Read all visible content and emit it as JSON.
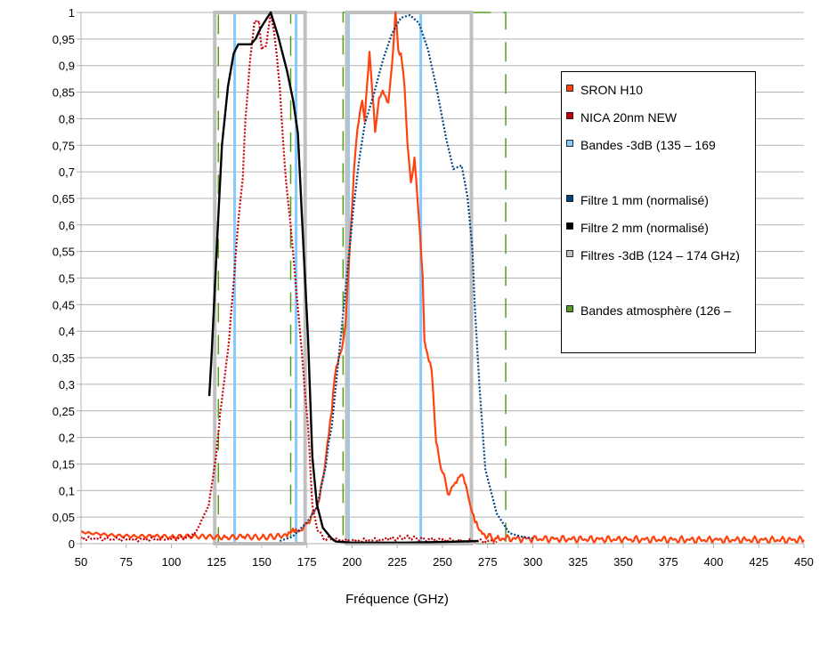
{
  "chart_data": {
    "type": "line",
    "title": "",
    "xlabel": "Fréquence (GHz)",
    "ylabel": "",
    "xlim": [
      50,
      450
    ],
    "ylim": [
      0,
      1
    ],
    "grid": "horizontal",
    "legend_position": "right",
    "x_ticks": [
      "50",
      "75",
      "100",
      "125",
      "150",
      "175",
      "200",
      "225",
      "250",
      "275",
      "300",
      "325",
      "350",
      "375",
      "400",
      "425",
      "450"
    ],
    "y_ticks": [
      "0",
      "0,05",
      "0,1",
      "0,15",
      "0,2",
      "0,25",
      "0,3",
      "0,35",
      "0,4",
      "0,45",
      "0,5",
      "0,55",
      "0,6",
      "0,65",
      "0,7",
      "0,75",
      "0,8",
      "0,85",
      "0,9",
      "0,95",
      "1"
    ],
    "legend": [
      {
        "name": "SRON H10",
        "color": "#ff420e"
      },
      {
        "name": "NICA 20nm NEW",
        "color": "#c5000b"
      },
      {
        "name": "Bandes -3dB (135 – 169",
        "color": "#83caff"
      },
      {
        "name": "",
        "color": ""
      },
      {
        "name": "Filtre 1 mm (normalisé)",
        "color": "#004586"
      },
      {
        "name": "Filtre 2 mm (normalisé)",
        "color": "#000000"
      },
      {
        "name": "Filtres -3dB (124 – 174 GHz)",
        "color": "#c0c0c0"
      },
      {
        "name": "",
        "color": ""
      },
      {
        "name": "Bandes atmosphère (126 –",
        "color": "#579d1c"
      }
    ],
    "series": [
      {
        "name": "SRON H10",
        "color": "#ff420e",
        "style": "solid",
        "width": 2.2,
        "x": [
          50,
          55,
          60,
          70,
          80,
          90,
          100,
          110,
          120,
          130,
          140,
          150,
          160,
          162.5,
          168,
          172,
          175.6,
          179,
          182,
          185.5,
          188.7,
          190.4,
          192.8,
          193.7,
          196.3,
          198.7,
          201,
          203,
          205.6,
          207,
          209.6,
          212.7,
          215,
          217,
          220,
          222,
          224,
          225.5,
          227,
          229,
          230.7,
          232.5,
          234.5,
          237,
          239,
          240,
          244,
          246.5,
          250,
          253.6,
          257,
          261,
          263,
          265.5,
          268,
          270.5,
          275,
          280,
          300,
          350,
          400,
          450
        ],
        "y": [
          0.022,
          0.02,
          0.018,
          0.015,
          0.014,
          0.014,
          0.013,
          0.014,
          0.013,
          0.012,
          0.013,
          0.012,
          0.014,
          0.018,
          0.022,
          0.025,
          0.04,
          0.06,
          0.085,
          0.164,
          0.247,
          0.313,
          0.353,
          0.36,
          0.41,
          0.558,
          0.7,
          0.782,
          0.834,
          0.795,
          0.926,
          0.775,
          0.84,
          0.853,
          0.83,
          0.9,
          1.0,
          0.93,
          0.923,
          0.86,
          0.75,
          0.68,
          0.727,
          0.61,
          0.506,
          0.383,
          0.327,
          0.19,
          0.134,
          0.092,
          0.115,
          0.13,
          0.11,
          0.07,
          0.04,
          0.025,
          0.013,
          0.01,
          0.009,
          0.008,
          0.007,
          0.007
        ]
      },
      {
        "name": "NICA 20nm NEW",
        "color": "#c5000b",
        "style": "dotted",
        "width": 2.2,
        "x": [
          50,
          80,
          100,
          110,
          114,
          117.3,
          120.6,
          123,
          124.7,
          127,
          129.5,
          132,
          137,
          139.5,
          141,
          143.6,
          146,
          148.5,
          150,
          152.6,
          155,
          157.5,
          160,
          161.6,
          163.3,
          165.8,
          171.5,
          175.6,
          178,
          180.5,
          184,
          200,
          220,
          230,
          240,
          260,
          280
        ],
        "y": [
          0.01,
          0.008,
          0.009,
          0.012,
          0.025,
          0.047,
          0.069,
          0.124,
          0.164,
          0.247,
          0.314,
          0.387,
          0.605,
          0.688,
          0.8,
          0.912,
          0.984,
          0.984,
          0.93,
          0.94,
          1.0,
          0.944,
          0.86,
          0.77,
          0.688,
          0.605,
          0.387,
          0.22,
          0.074,
          0.03,
          0.01,
          0.005,
          0.008,
          0.012,
          0.008,
          0.006,
          0.004
        ]
      },
      {
        "name": "Filtre 1 mm (normalisé)",
        "color": "#004586",
        "style": "dotted",
        "width": 2.2,
        "x": [
          160,
          167,
          175,
          180.5,
          185.5,
          187,
          188.7,
          196.8,
          200.4,
          203.8,
          207,
          212,
          217,
          222,
          227,
          232,
          237,
          242,
          247,
          252,
          256,
          260.6,
          263.8,
          266.5,
          268,
          270.4,
          273.7,
          280,
          287,
          295,
          300
        ],
        "y": [
          0.005,
          0.013,
          0.04,
          0.069,
          0.147,
          0.19,
          0.22,
          0.493,
          0.62,
          0.72,
          0.79,
          0.846,
          0.91,
          0.96,
          0.99,
          0.995,
          0.98,
          0.93,
          0.853,
          0.763,
          0.705,
          0.712,
          0.654,
          0.558,
          0.44,
          0.3,
          0.14,
          0.057,
          0.02,
          0.012,
          0.01
        ]
      },
      {
        "name": "Filtre 2 mm (normalisé)",
        "color": "#000000",
        "style": "solid",
        "width": 2.4,
        "x": [
          121,
          122.2,
          125.8,
          128,
          131.3,
          134.5,
          137,
          144,
          146.7,
          149.3,
          152.6,
          155,
          159,
          164,
          167.4,
          170,
          172.3,
          175.6,
          178,
          180.5,
          183.8,
          188.6,
          191,
          200,
          230,
          260,
          270
        ],
        "y": [
          0.278,
          0.353,
          0.605,
          0.75,
          0.86,
          0.923,
          0.94,
          0.94,
          0.951,
          0.97,
          0.988,
          1.0,
          0.956,
          0.89,
          0.834,
          0.772,
          0.61,
          0.387,
          0.164,
          0.074,
          0.03,
          0.01,
          0.004,
          0.002,
          0.002,
          0.004,
          0.005
        ]
      }
    ],
    "bands": [
      {
        "name": "Filtres -3dB",
        "color": "#c0c0c0",
        "style": "solid",
        "ranges": [
          [
            124,
            174
          ],
          [
            197,
            266
          ]
        ]
      },
      {
        "name": "Bandes -3dB",
        "color": "#83caff",
        "style": "solid",
        "ranges": [
          [
            135,
            169
          ],
          [
            198,
            238
          ]
        ]
      },
      {
        "name": "Bandes atmosphère",
        "color": "#579d1c",
        "style": "dashed",
        "ranges": [
          [
            126,
            166
          ],
          [
            195,
            285
          ]
        ]
      }
    ]
  }
}
